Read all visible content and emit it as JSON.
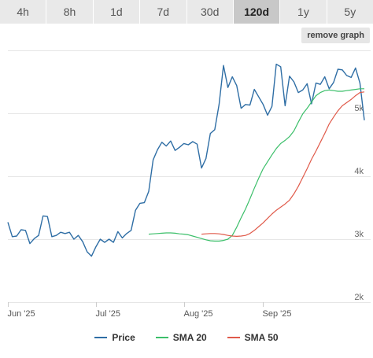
{
  "tabs": [
    {
      "label": "4h",
      "active": false
    },
    {
      "label": "8h",
      "active": false
    },
    {
      "label": "1d",
      "active": false
    },
    {
      "label": "7d",
      "active": false
    },
    {
      "label": "30d",
      "active": false
    },
    {
      "label": "120d",
      "active": true
    },
    {
      "label": "1y",
      "active": false
    },
    {
      "label": "5y",
      "active": false
    }
  ],
  "remove_graph_label": "remove graph",
  "chart_data": {
    "type": "line",
    "x_tick_labels": [
      "Jun '25",
      "Jul '25",
      "Aug '25",
      "Sep '25"
    ],
    "y_tick_labels": [
      "2k",
      "3k",
      "4k",
      "5k"
    ],
    "ylim": [
      2000,
      6000
    ],
    "grid": true,
    "legend_position": "bottom",
    "series": [
      {
        "name": "Price",
        "color": "#2f6ea5",
        "values": [
          3270,
          3040,
          3050,
          3150,
          3140,
          2930,
          3010,
          3060,
          3370,
          3360,
          3040,
          3060,
          3110,
          3090,
          3110,
          3000,
          3060,
          2960,
          2800,
          2730,
          2880,
          3000,
          2950,
          3000,
          2950,
          3120,
          3020,
          3090,
          3140,
          3460,
          3570,
          3580,
          3760,
          4260,
          4420,
          4540,
          4480,
          4560,
          4410,
          4460,
          4520,
          4500,
          4550,
          4510,
          4130,
          4280,
          4680,
          4740,
          5140,
          5760,
          5410,
          5580,
          5440,
          5080,
          5140,
          5130,
          5380,
          5260,
          5140,
          4970,
          5110,
          5780,
          5740,
          5120,
          5590,
          5500,
          5330,
          5370,
          5470,
          5150,
          5480,
          5460,
          5580,
          5390,
          5490,
          5700,
          5690,
          5600,
          5570,
          5720,
          5480,
          4890
        ]
      },
      {
        "name": "SMA 20",
        "color": "#3cbf6a",
        "values": [
          3080,
          3085,
          3090,
          3095,
          3100,
          3100,
          3095,
          3085,
          3080,
          3070,
          3050,
          3030,
          3010,
          2990,
          2975,
          2970,
          2970,
          2980,
          3000,
          3060,
          3190,
          3340,
          3480,
          3640,
          3810,
          3970,
          4120,
          4230,
          4340,
          4440,
          4520,
          4570,
          4630,
          4720,
          4860,
          4990,
          5080,
          5180,
          5280,
          5330,
          5360,
          5370,
          5360,
          5350,
          5350,
          5360,
          5370,
          5380,
          5390,
          5390
        ]
      },
      {
        "name": "SMA 50",
        "color": "#e05a4a",
        "values": [
          3080,
          3085,
          3090,
          3090,
          3085,
          3075,
          3060,
          3050,
          3045,
          3050,
          3060,
          3090,
          3140,
          3200,
          3260,
          3330,
          3400,
          3460,
          3510,
          3560,
          3620,
          3720,
          3840,
          3980,
          4120,
          4270,
          4400,
          4540,
          4680,
          4830,
          4940,
          5040,
          5120,
          5170,
          5220,
          5280,
          5330,
          5340
        ]
      }
    ]
  }
}
